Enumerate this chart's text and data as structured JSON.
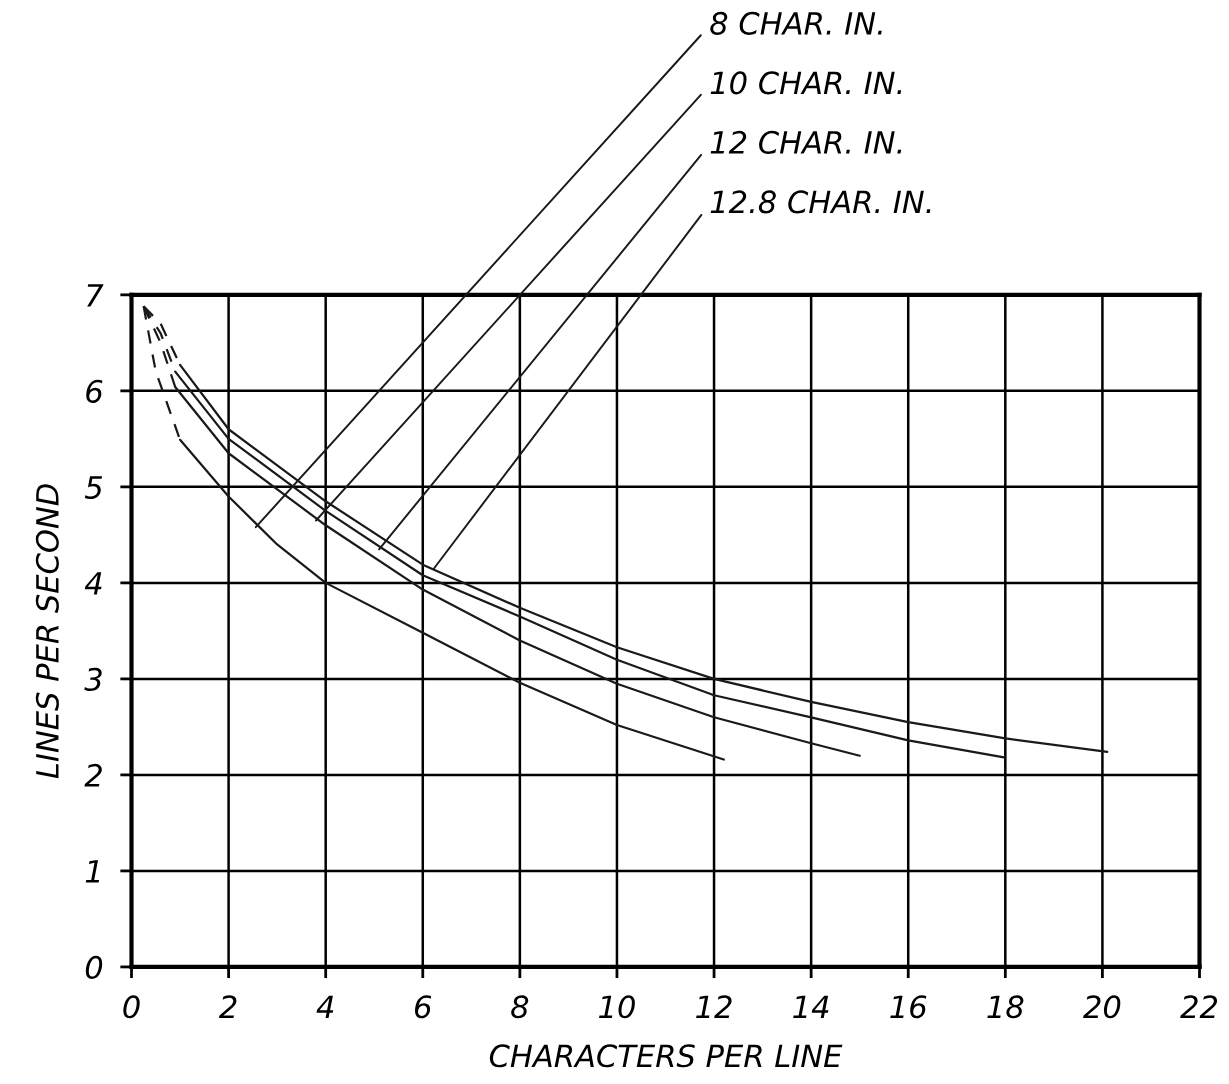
{
  "chart_data": {
    "type": "line",
    "xlabel": "CHARACTERS PER LINE",
    "ylabel": "LINES PER SECOND",
    "xlim": [
      0,
      22
    ],
    "ylim": [
      0,
      7
    ],
    "xticks": [
      0,
      2,
      4,
      6,
      8,
      10,
      12,
      14,
      16,
      18,
      20,
      22
    ],
    "yticks": [
      0,
      1,
      2,
      3,
      4,
      5,
      6,
      7
    ],
    "grid": true,
    "marker": "none",
    "series": [
      {
        "color": "#1a1a1a",
        "line_style": "solid",
        "x": [
          1.0,
          2,
          3,
          4,
          6,
          8,
          10,
          12.2
        ],
        "values": [
          5.49,
          4.9,
          4.4,
          4.0,
          3.48,
          2.96,
          2.52,
          2.16
        ]
      },
      {
        "color": "#1a1a1a",
        "line_style": "dashed",
        "x": [
          0.25,
          0.5,
          1.0
        ],
        "values": [
          6.88,
          6.2,
          5.49
        ]
      },
      {
        "color": "#1a1a1a",
        "line_style": "solid",
        "x": [
          0.9,
          2,
          4,
          6,
          8,
          10,
          12,
          14,
          15.0
        ],
        "values": [
          6.04,
          5.35,
          4.6,
          3.93,
          3.4,
          2.95,
          2.6,
          2.33,
          2.2
        ]
      },
      {
        "color": "#1a1a1a",
        "line_style": "dashed",
        "x": [
          0.25,
          0.6,
          0.9
        ],
        "values": [
          6.88,
          6.5,
          6.04
        ]
      },
      {
        "color": "#1a1a1a",
        "line_style": "solid",
        "x": [
          0.9,
          2,
          4,
          6,
          8,
          10,
          12,
          14,
          16,
          18
        ],
        "values": [
          6.2,
          5.5,
          4.75,
          4.08,
          3.65,
          3.2,
          2.83,
          2.6,
          2.36,
          2.18
        ]
      },
      {
        "color": "#1a1a1a",
        "line_style": "dashed",
        "x": [
          0.25,
          0.6,
          0.9
        ],
        "values": [
          6.88,
          6.6,
          6.2
        ]
      },
      {
        "color": "#1a1a1a",
        "line_style": "solid",
        "x": [
          1.0,
          2,
          4,
          6,
          8,
          10,
          12,
          14,
          16,
          18,
          20.1
        ],
        "values": [
          6.27,
          5.6,
          4.85,
          4.19,
          3.74,
          3.33,
          3.0,
          2.76,
          2.55,
          2.38,
          2.24
        ]
      },
      {
        "color": "#1a1a1a",
        "line_style": "dashed",
        "x": [
          0.25,
          0.6,
          1.0
        ],
        "values": [
          6.88,
          6.7,
          6.27
        ]
      }
    ],
    "annotations": [
      {
        "text": "8 CHAR. IN.",
        "x": 2.56,
        "y": 4.58
      },
      {
        "text": "10 CHAR. IN.",
        "x": 3.8,
        "y": 4.65
      },
      {
        "text": "12 CHAR. IN.",
        "x": 5.1,
        "y": 4.35
      },
      {
        "text": "12.8 CHAR. IN.",
        "x": 6.23,
        "y": 4.15
      }
    ]
  }
}
